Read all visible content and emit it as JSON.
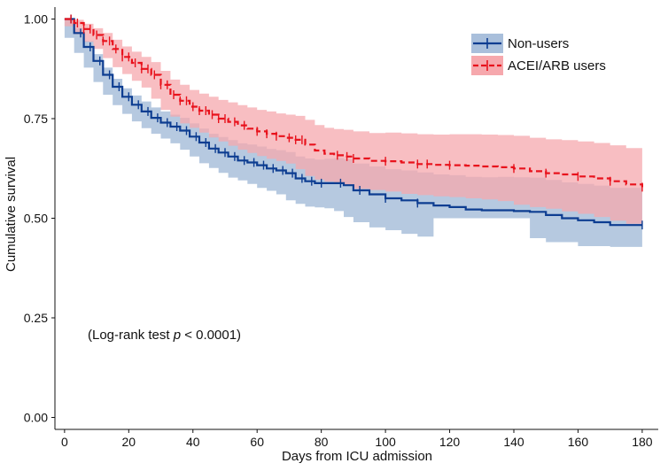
{
  "chart_data": {
    "type": "line",
    "title": "",
    "xlabel": "Days from ICU admission",
    "ylabel": "Cumulative survival",
    "xlim": [
      -3,
      185
    ],
    "ylim": [
      -0.03,
      1.03
    ],
    "x_ticks": [
      0,
      20,
      40,
      60,
      80,
      100,
      120,
      140,
      160,
      180
    ],
    "x_tick_labels": [
      "0",
      "20",
      "40",
      "60",
      "80",
      "100",
      "120",
      "140",
      "160",
      "180"
    ],
    "y_ticks": [
      0.0,
      0.25,
      0.5,
      0.75,
      1.0
    ],
    "y_tick_labels": [
      "0.00",
      "0.25",
      "0.50",
      "0.75",
      "1.00"
    ],
    "grid": false,
    "legend_position": "top-right",
    "annotation": {
      "prefix": "(Log-rank test ",
      "italic": "p",
      "suffix": " < 0.0001)"
    },
    "series": [
      {
        "name": "Non-users",
        "color": "#0d3d91",
        "band_color": "#a9bfdb",
        "line_style": "solid",
        "x": [
          0,
          3,
          6,
          9,
          12,
          15,
          18,
          21,
          24,
          27,
          30,
          33,
          36,
          39,
          42,
          45,
          48,
          51,
          54,
          57,
          60,
          63,
          66,
          69,
          72,
          75,
          78,
          81,
          84,
          87,
          90,
          95,
          100,
          105,
          110,
          115,
          120,
          125,
          130,
          135,
          140,
          145,
          150,
          155,
          160,
          165,
          170,
          175,
          180
        ],
        "y": [
          1.0,
          0.965,
          0.93,
          0.895,
          0.86,
          0.83,
          0.805,
          0.785,
          0.768,
          0.752,
          0.74,
          0.73,
          0.72,
          0.705,
          0.69,
          0.675,
          0.665,
          0.655,
          0.645,
          0.64,
          0.633,
          0.625,
          0.62,
          0.613,
          0.6,
          0.593,
          0.588,
          0.588,
          0.588,
          0.583,
          0.57,
          0.56,
          0.55,
          0.545,
          0.538,
          0.532,
          0.528,
          0.522,
          0.52,
          0.52,
          0.518,
          0.516,
          0.508,
          0.5,
          0.495,
          0.49,
          0.483,
          0.483,
          0.483
        ],
        "lower": [
          1.0,
          0.953,
          0.915,
          0.878,
          0.842,
          0.81,
          0.784,
          0.762,
          0.743,
          0.726,
          0.712,
          0.7,
          0.688,
          0.672,
          0.655,
          0.638,
          0.626,
          0.614,
          0.602,
          0.595,
          0.586,
          0.576,
          0.569,
          0.56,
          0.545,
          0.536,
          0.529,
          0.527,
          0.525,
          0.518,
          0.503,
          0.49,
          0.477,
          0.47,
          0.461,
          0.454,
          0.5,
          0.5,
          0.5,
          0.5,
          0.5,
          0.5,
          0.45,
          0.44,
          0.44,
          0.43,
          0.43,
          0.428,
          0.428
        ],
        "upper": [
          1.0,
          0.977,
          0.945,
          0.912,
          0.878,
          0.85,
          0.826,
          0.808,
          0.793,
          0.778,
          0.768,
          0.76,
          0.752,
          0.738,
          0.725,
          0.712,
          0.704,
          0.696,
          0.688,
          0.685,
          0.68,
          0.674,
          0.671,
          0.666,
          0.655,
          0.65,
          0.647,
          0.649,
          0.651,
          0.648,
          0.637,
          0.63,
          0.623,
          0.62,
          0.615,
          0.61,
          0.608,
          0.604,
          0.603,
          0.604,
          0.603,
          0.602,
          0.596,
          0.59,
          0.586,
          0.582,
          0.576,
          0.576,
          0.576
        ],
        "censor_x": [
          2,
          5,
          8,
          11,
          14,
          17,
          20,
          23,
          26,
          29,
          32,
          35,
          38,
          41,
          44,
          47,
          50,
          53,
          56,
          59,
          62,
          65,
          68,
          71,
          74,
          77,
          80,
          86,
          92,
          100,
          110,
          180
        ]
      },
      {
        "name": "ACEI/ARB users",
        "color": "#e8121c",
        "band_color": "#f6a8ad",
        "line_style": "dashed",
        "x": [
          0,
          3,
          6,
          9,
          12,
          15,
          18,
          21,
          24,
          27,
          30,
          33,
          36,
          39,
          42,
          45,
          48,
          51,
          54,
          57,
          60,
          63,
          66,
          69,
          72,
          75,
          78,
          81,
          84,
          87,
          90,
          95,
          100,
          105,
          110,
          115,
          120,
          125,
          130,
          135,
          140,
          145,
          150,
          155,
          160,
          165,
          170,
          175,
          180
        ],
        "y": [
          1.0,
          0.99,
          0.975,
          0.96,
          0.945,
          0.925,
          0.905,
          0.89,
          0.875,
          0.86,
          0.835,
          0.81,
          0.795,
          0.78,
          0.77,
          0.76,
          0.75,
          0.742,
          0.733,
          0.725,
          0.718,
          0.712,
          0.706,
          0.702,
          0.697,
          0.685,
          0.67,
          0.662,
          0.658,
          0.655,
          0.65,
          0.644,
          0.643,
          0.64,
          0.636,
          0.634,
          0.633,
          0.632,
          0.63,
          0.628,
          0.625,
          0.618,
          0.613,
          0.61,
          0.605,
          0.6,
          0.593,
          0.585,
          0.578
        ],
        "lower": [
          1.0,
          0.982,
          0.962,
          0.943,
          0.925,
          0.902,
          0.879,
          0.862,
          0.845,
          0.828,
          0.8,
          0.772,
          0.755,
          0.738,
          0.727,
          0.715,
          0.703,
          0.693,
          0.682,
          0.672,
          0.664,
          0.656,
          0.649,
          0.644,
          0.637,
          0.623,
          0.606,
          0.597,
          0.592,
          0.588,
          0.582,
          0.574,
          0.571,
          0.567,
          0.561,
          0.558,
          0.555,
          0.553,
          0.55,
          0.547,
          0.543,
          0.534,
          0.528,
          0.524,
          0.517,
          0.511,
          0.503,
          0.494,
          0.486
        ],
        "upper": [
          1.0,
          0.998,
          0.988,
          0.977,
          0.965,
          0.948,
          0.931,
          0.918,
          0.905,
          0.892,
          0.87,
          0.848,
          0.835,
          0.822,
          0.813,
          0.805,
          0.797,
          0.791,
          0.784,
          0.778,
          0.772,
          0.768,
          0.763,
          0.76,
          0.757,
          0.747,
          0.734,
          0.727,
          0.724,
          0.722,
          0.718,
          0.714,
          0.715,
          0.713,
          0.711,
          0.71,
          0.711,
          0.711,
          0.71,
          0.709,
          0.707,
          0.702,
          0.698,
          0.696,
          0.693,
          0.689,
          0.683,
          0.676,
          0.67
        ],
        "censor_x": [
          2,
          4,
          6,
          8,
          10,
          12,
          14,
          16,
          18,
          20,
          22,
          24,
          26,
          28,
          30,
          32,
          34,
          36,
          38,
          40,
          42,
          44,
          46,
          48,
          50,
          53,
          56,
          60,
          63,
          66,
          70,
          72,
          74,
          85,
          88,
          90,
          100,
          110,
          113,
          120,
          140,
          150,
          160,
          170,
          180
        ]
      }
    ]
  }
}
